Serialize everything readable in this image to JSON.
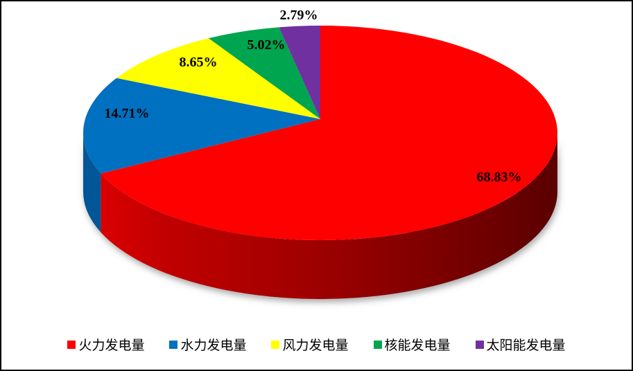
{
  "chart_data": {
    "type": "pie",
    "variant": "3d",
    "direction": "clockwise",
    "start_angle_deg": 0,
    "legend_position": "bottom",
    "labels": [
      "火力发电量",
      "水力发电量",
      "风力发电量",
      "核能发电量",
      "太阳能发电量"
    ],
    "values": [
      68.83,
      14.71,
      8.65,
      5.02,
      2.79
    ],
    "data_labels": [
      "68.83%",
      "14.71%",
      "8.65%",
      "5.02%",
      "2.79%"
    ],
    "colors": [
      "#FF0000",
      "#0070C0",
      "#FFFF00",
      "#00A550",
      "#7030A0"
    ],
    "side_shading": {
      "red_side_gradient": [
        "#E00000",
        "#C00000",
        "#970404",
        "#5A0000"
      ],
      "blue_side": "#0C66AE"
    }
  }
}
